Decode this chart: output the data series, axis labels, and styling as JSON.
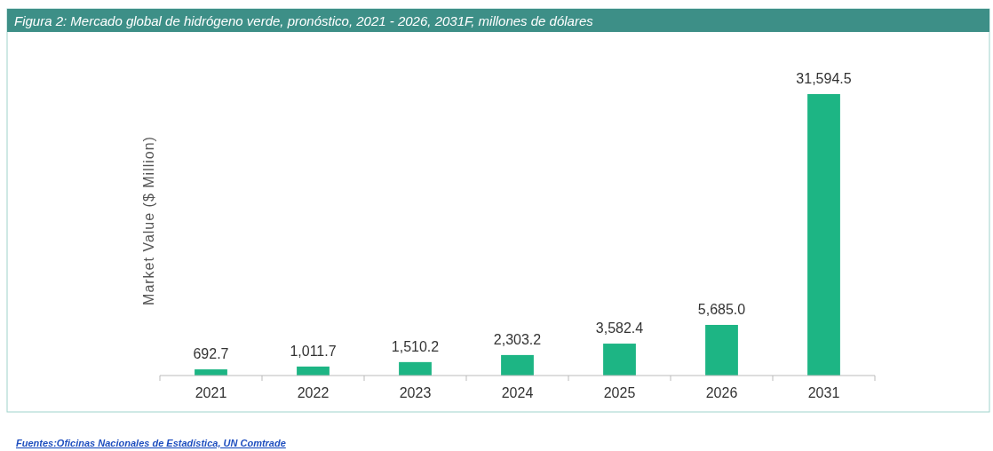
{
  "chart_data": {
    "type": "bar",
    "title": "Figura 2: Mercado global de hidrógeno verde, pronóstico, 2021 - 2026, 2031F, millones de dólares",
    "ylabel": "Market Value ($ Million)",
    "categories": [
      "2021",
      "2022",
      "2023",
      "2024",
      "2025",
      "2026",
      "2031"
    ],
    "values": [
      692.7,
      1011.7,
      1510.2,
      2303.2,
      3582.4,
      5685.0,
      31594.5
    ],
    "value_labels": [
      "692.7",
      "1,011.7",
      "1,510.2",
      "2,303.2",
      "3,582.4",
      "5,685.0",
      "31,594.5"
    ],
    "color": "#1db584",
    "annotations": [
      "Fuentes:Oficinas Nacionales de Estadística, UN Comtrade"
    ]
  }
}
